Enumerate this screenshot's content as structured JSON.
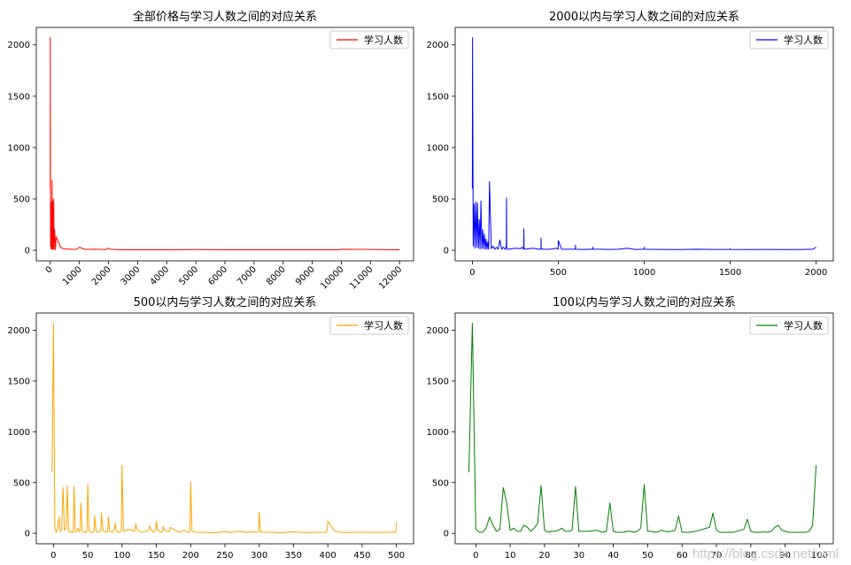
{
  "chart_data": [
    {
      "type": "line",
      "title": "全部价格与学习人数之间的对应关系",
      "color": "#ff0000",
      "legend": "学习人数",
      "legend_position": "upper-right",
      "xlim": [
        -480,
        12480
      ],
      "ylim": [
        -103,
        2170
      ],
      "xticks": [
        0,
        1000,
        2000,
        3000,
        4000,
        5000,
        6000,
        7000,
        8000,
        9000,
        10000,
        11000,
        12000
      ],
      "xtick_rotation": 45,
      "yticks": [
        0,
        500,
        1000,
        1500,
        2000
      ],
      "grid": false,
      "x": [
        0,
        1,
        10,
        20,
        30,
        40,
        50,
        60,
        70,
        80,
        100,
        120,
        130,
        150,
        180,
        200,
        250,
        300,
        350,
        400,
        500,
        600,
        700,
        800,
        900,
        1000,
        1200,
        1500,
        1800,
        1900,
        2000,
        2100,
        2500,
        3000,
        4000,
        5000,
        6000,
        7000,
        8000,
        9000,
        9900,
        10000,
        11000,
        12000
      ],
      "y": [
        600,
        2070,
        40,
        470,
        10,
        460,
        10,
        680,
        10,
        480,
        10,
        500,
        10,
        200,
        5,
        130,
        100,
        70,
        30,
        20,
        15,
        10,
        10,
        8,
        10,
        30,
        8,
        10,
        8,
        6,
        20,
        8,
        5,
        5,
        5,
        6,
        5,
        5,
        5,
        5,
        5,
        10,
        8,
        5
      ]
    },
    {
      "type": "line",
      "title": "2000以内与学习人数之间的对应关系",
      "color": "#0000ff",
      "legend": "学习人数",
      "legend_position": "upper-right",
      "xlim": [
        -100,
        2100
      ],
      "ylim": [
        -103,
        2170
      ],
      "xticks": [
        0,
        500,
        1000,
        1500,
        2000
      ],
      "yticks": [
        0,
        500,
        1000,
        1500,
        2000
      ],
      "grid": false,
      "x": [
        0,
        1,
        5,
        10,
        15,
        20,
        25,
        30,
        35,
        40,
        45,
        50,
        55,
        60,
        65,
        70,
        75,
        80,
        85,
        90,
        95,
        100,
        110,
        120,
        130,
        140,
        150,
        160,
        170,
        180,
        190,
        198,
        199,
        200,
        201,
        210,
        250,
        280,
        290,
        299,
        300,
        301,
        310,
        350,
        390,
        399,
        400,
        401,
        410,
        450,
        490,
        499,
        500,
        510,
        520,
        550,
        590,
        599,
        600,
        601,
        650,
        690,
        699,
        700,
        701,
        710,
        750,
        800,
        850,
        900,
        950,
        990,
        999,
        1000,
        1001,
        1100,
        1200,
        1300,
        1400,
        1490,
        1499,
        1500,
        1501,
        1600,
        1700,
        1800,
        1900,
        1980,
        2000
      ],
      "y": [
        600,
        2070,
        40,
        450,
        20,
        470,
        30,
        460,
        20,
        300,
        10,
        480,
        20,
        200,
        15,
        160,
        10,
        110,
        10,
        80,
        10,
        670,
        15,
        40,
        10,
        30,
        10,
        100,
        10,
        30,
        10,
        40,
        510,
        20,
        10,
        10,
        20,
        15,
        30,
        10,
        210,
        15,
        10,
        20,
        10,
        10,
        120,
        15,
        10,
        10,
        20,
        10,
        95,
        50,
        10,
        10,
        10,
        10,
        50,
        10,
        8,
        10,
        10,
        30,
        10,
        10,
        10,
        8,
        10,
        20,
        8,
        10,
        10,
        30,
        10,
        8,
        6,
        10,
        8,
        8,
        10,
        15,
        8,
        6,
        8,
        6,
        6,
        10,
        30
      ]
    },
    {
      "type": "line",
      "title": "500以内与学习人数之间的对应关系",
      "color": "#ffa500",
      "legend": "学习人数",
      "legend_position": "upper-right",
      "xlim": [
        -25,
        525
      ],
      "ylim": [
        -103,
        2170
      ],
      "xticks": [
        0,
        50,
        100,
        150,
        200,
        250,
        300,
        350,
        400,
        450,
        500
      ],
      "yticks": [
        0,
        500,
        1000,
        1500,
        2000
      ],
      "grid": false,
      "x": [
        -2,
        0,
        2,
        4,
        6,
        8,
        9,
        10,
        12,
        14,
        16,
        18,
        19,
        20,
        22,
        24,
        26,
        28,
        29,
        30,
        32,
        34,
        36,
        38,
        39,
        40,
        42,
        44,
        46,
        48,
        49,
        50,
        52,
        56,
        58,
        59,
        60,
        62,
        66,
        68,
        69,
        70,
        72,
        76,
        78,
        79,
        80,
        82,
        86,
        88,
        89,
        90,
        92,
        96,
        98,
        99,
        100,
        102,
        110,
        118,
        119,
        120,
        122,
        130,
        135,
        139,
        140,
        145,
        148,
        149,
        150,
        152,
        158,
        159,
        160,
        162,
        168,
        169,
        170,
        175,
        180,
        185,
        190,
        195,
        198,
        199,
        200,
        202,
        210,
        220,
        230,
        240,
        250,
        260,
        270,
        280,
        290,
        298,
        299,
        300,
        302,
        310,
        320,
        330,
        340,
        350,
        360,
        370,
        380,
        390,
        398,
        399,
        400,
        410,
        420,
        430,
        440,
        450,
        460,
        470,
        480,
        490,
        498,
        499,
        500
      ],
      "y": [
        600,
        2070,
        50,
        10,
        50,
        160,
        80,
        20,
        40,
        450,
        30,
        50,
        100,
        470,
        30,
        10,
        20,
        5,
        20,
        460,
        15,
        20,
        50,
        10,
        30,
        300,
        20,
        10,
        15,
        5,
        40,
        480,
        20,
        5,
        15,
        30,
        170,
        20,
        10,
        20,
        30,
        200,
        30,
        10,
        20,
        15,
        160,
        20,
        10,
        30,
        40,
        100,
        20,
        10,
        20,
        30,
        670,
        20,
        40,
        20,
        30,
        90,
        30,
        10,
        20,
        30,
        70,
        10,
        20,
        30,
        120,
        30,
        10,
        20,
        70,
        30,
        15,
        20,
        60,
        40,
        20,
        10,
        30,
        10,
        10,
        20,
        510,
        20,
        10,
        10,
        5,
        10,
        15,
        10,
        20,
        10,
        15,
        10,
        20,
        210,
        15,
        10,
        10,
        5,
        10,
        15,
        10,
        8,
        10,
        10,
        10,
        30,
        120,
        20,
        10,
        8,
        10,
        10,
        10,
        8,
        10,
        10,
        10,
        10,
        100
      ]
    },
    {
      "type": "line",
      "title": "100以内与学习人数之间的对应关系",
      "color": "#008000",
      "legend": "学习人数",
      "legend_position": "upper-right",
      "xlim": [
        -6,
        104
      ],
      "ylim": [
        -103,
        2170
      ],
      "xticks": [
        0,
        10,
        20,
        30,
        40,
        50,
        60,
        70,
        80,
        90,
        100
      ],
      "yticks": [
        0,
        500,
        1000,
        1500,
        2000
      ],
      "grid": false,
      "x": [
        -2,
        -1,
        0,
        1,
        2,
        3,
        4,
        5,
        6,
        7,
        8,
        9,
        10,
        11,
        12,
        13,
        14,
        15,
        16,
        17,
        18,
        19,
        20,
        21,
        22,
        23,
        24,
        25,
        26,
        27,
        28,
        29,
        30,
        31,
        32,
        33,
        34,
        35,
        36,
        37,
        38,
        39,
        40,
        41,
        42,
        43,
        44,
        45,
        46,
        47,
        48,
        49,
        50,
        51,
        52,
        53,
        54,
        55,
        56,
        57,
        58,
        59,
        60,
        61,
        62,
        63,
        64,
        65,
        66,
        67,
        68,
        69,
        70,
        71,
        72,
        73,
        74,
        75,
        76,
        77,
        78,
        79,
        80,
        81,
        82,
        83,
        84,
        85,
        86,
        87,
        88,
        89,
        90,
        91,
        92,
        93,
        94,
        95,
        96,
        97,
        98,
        99
      ],
      "y": [
        600,
        2070,
        40,
        10,
        10,
        50,
        160,
        80,
        20,
        40,
        450,
        300,
        30,
        50,
        20,
        20,
        80,
        60,
        20,
        50,
        100,
        470,
        30,
        10,
        20,
        20,
        30,
        50,
        20,
        20,
        30,
        460,
        20,
        20,
        20,
        20,
        25,
        30,
        20,
        10,
        20,
        300,
        20,
        10,
        10,
        10,
        20,
        20,
        10,
        20,
        50,
        480,
        20,
        20,
        10,
        15,
        30,
        20,
        15,
        20,
        30,
        170,
        10,
        10,
        10,
        15,
        20,
        30,
        40,
        50,
        60,
        200,
        30,
        10,
        10,
        10,
        10,
        10,
        20,
        30,
        40,
        140,
        20,
        10,
        10,
        10,
        15,
        10,
        20,
        60,
        80,
        30,
        20,
        10,
        10,
        10,
        10,
        10,
        10,
        20,
        80,
        670
      ]
    }
  ],
  "watermark": "https://blog.csdn.net/wml"
}
